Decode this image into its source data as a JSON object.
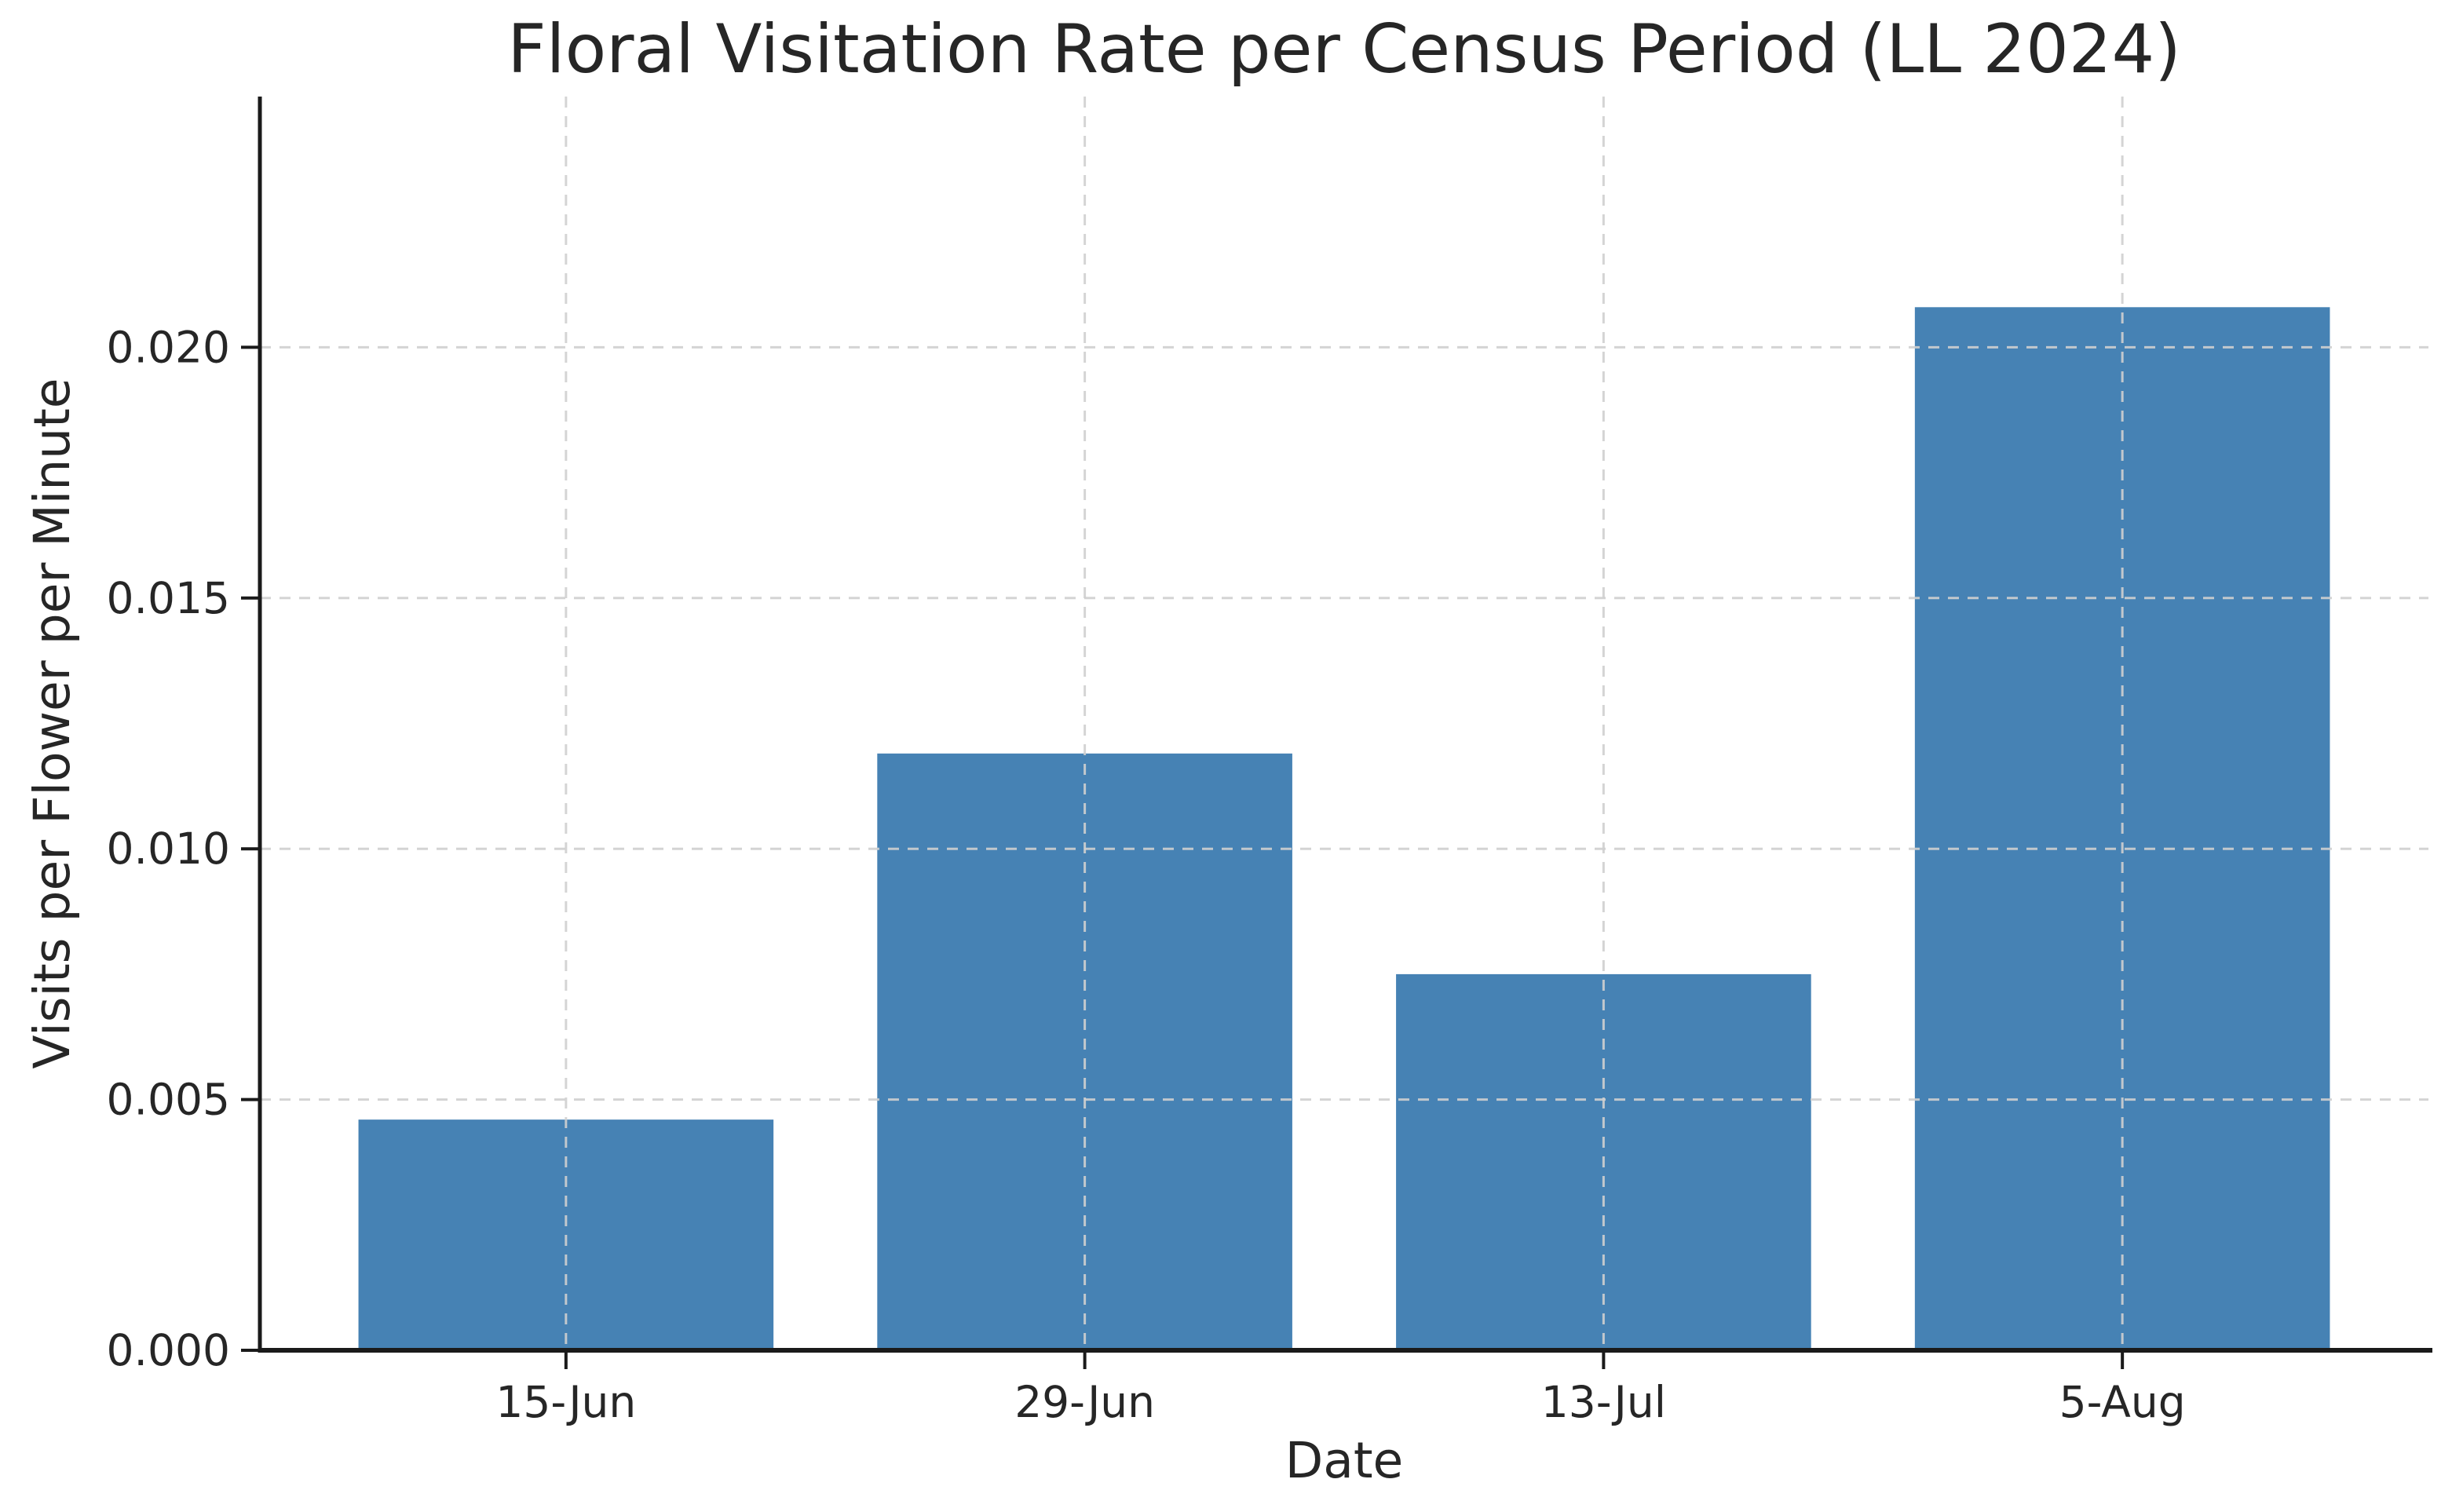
{
  "chart_data": {
    "type": "bar",
    "title": "Floral Visitation Rate per Census Period (LL 2024)",
    "xlabel": "Date",
    "ylabel": "Visits per Flower per Minute",
    "categories": [
      "15-Jun",
      "29-Jun",
      "13-Jul",
      "5-Aug"
    ],
    "values": [
      0.0046,
      0.0119,
      0.0075,
      0.0208
    ],
    "ylim": [
      0,
      0.025
    ],
    "yticks": [
      0,
      0.005,
      0.01,
      0.015,
      0.02
    ],
    "ytick_labels": [
      "0.000",
      "0.005",
      "0.010",
      "0.015",
      "0.020"
    ],
    "grid": "dashed gridlines on both axes, drawn over bars",
    "legend": "none",
    "bar_width_fraction": 0.8,
    "colors": {
      "bar": "#4682b4",
      "text": "#262626",
      "axis": "#1a1a1a",
      "grid": "#d0d0d0",
      "background": "#ffffff"
    }
  }
}
